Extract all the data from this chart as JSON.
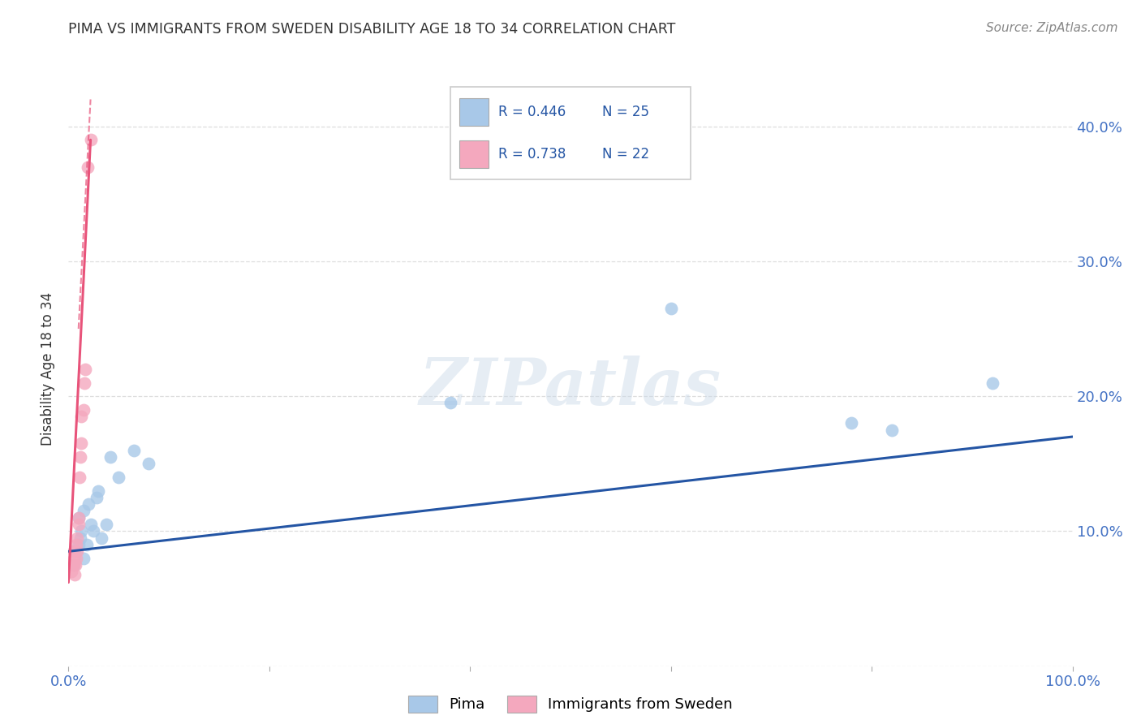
{
  "title": "PIMA VS IMMIGRANTS FROM SWEDEN DISABILITY AGE 18 TO 34 CORRELATION CHART",
  "source": "Source: ZipAtlas.com",
  "ylabel": "Disability Age 18 to 34",
  "xlim": [
    0.0,
    1.0
  ],
  "ylim": [
    0.0,
    0.44
  ],
  "xticks": [
    0.0,
    0.2,
    0.4,
    0.6,
    0.8,
    1.0
  ],
  "xticklabels": [
    "0.0%",
    "",
    "",
    "",
    "",
    "100.0%"
  ],
  "yticks": [
    0.0,
    0.1,
    0.2,
    0.3,
    0.4
  ],
  "yticklabels_right": [
    "",
    "10.0%",
    "20.0%",
    "30.0%",
    "40.0%"
  ],
  "background_color": "#ffffff",
  "pima_R": "0.446",
  "pima_N": "25",
  "sweden_R": "0.738",
  "sweden_N": "22",
  "pima_color": "#a8c8e8",
  "sweden_color": "#f4a8be",
  "pima_line_color": "#2455a4",
  "sweden_line_color": "#e8537a",
  "pima_x": [
    0.005,
    0.008,
    0.01,
    0.01,
    0.012,
    0.013,
    0.015,
    0.015,
    0.018,
    0.02,
    0.022,
    0.025,
    0.028,
    0.03,
    0.033,
    0.038,
    0.042,
    0.05,
    0.065,
    0.08,
    0.38,
    0.6,
    0.78,
    0.82,
    0.92
  ],
  "pima_y": [
    0.075,
    0.085,
    0.09,
    0.11,
    0.095,
    0.1,
    0.08,
    0.115,
    0.09,
    0.12,
    0.105,
    0.1,
    0.125,
    0.13,
    0.095,
    0.105,
    0.155,
    0.14,
    0.16,
    0.15,
    0.195,
    0.265,
    0.18,
    0.175,
    0.21
  ],
  "sweden_x": [
    0.003,
    0.004,
    0.005,
    0.005,
    0.005,
    0.006,
    0.007,
    0.008,
    0.008,
    0.009,
    0.009,
    0.01,
    0.01,
    0.011,
    0.012,
    0.013,
    0.013,
    0.015,
    0.016,
    0.017,
    0.019,
    0.022
  ],
  "sweden_y": [
    0.07,
    0.075,
    0.075,
    0.08,
    0.085,
    0.068,
    0.075,
    0.08,
    0.09,
    0.085,
    0.095,
    0.105,
    0.11,
    0.14,
    0.155,
    0.165,
    0.185,
    0.19,
    0.21,
    0.22,
    0.37,
    0.39
  ],
  "pima_trend_x0": 0.0,
  "pima_trend_y0": 0.085,
  "pima_trend_x1": 1.0,
  "pima_trend_y1": 0.17,
  "sweden_trend_solid_x0": 0.0,
  "sweden_trend_solid_y0": 0.062,
  "sweden_trend_solid_x1": 0.022,
  "sweden_trend_solid_y1": 0.39,
  "sweden_trend_dashed_x0": 0.01,
  "sweden_trend_dashed_y0": 0.25,
  "sweden_trend_dashed_x1": 0.022,
  "sweden_trend_dashed_y1": 0.42,
  "grid_color": "#c8c8c8",
  "grid_style": "--",
  "grid_alpha": 0.6
}
